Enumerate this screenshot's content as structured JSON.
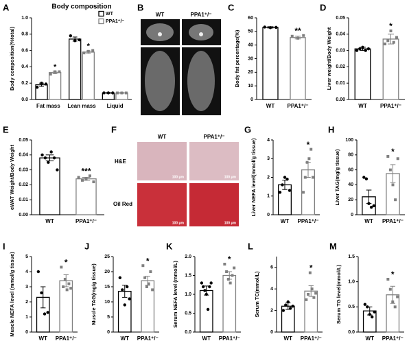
{
  "chart_data": [
    {
      "panel": "A",
      "type": "bar",
      "title": "Body composition",
      "ylabel": "Body composition(%total)",
      "categories": [
        "Fat mass",
        "Lean mass",
        "Liquid"
      ],
      "series": [
        {
          "name": "WT",
          "color": "#000000",
          "values": [
            0.18,
            0.74,
            0.08
          ],
          "errors": [
            0.02,
            0.025,
            0.005
          ],
          "points": [
            [
              0.15,
              0.2,
              0.19
            ],
            [
              0.78,
              0.72,
              0.73
            ],
            [
              0.08,
              0.08,
              0.08
            ]
          ],
          "significance": [
            null,
            null,
            null
          ]
        },
        {
          "name": "PPA1⁺/⁻",
          "color": "#808080",
          "values": [
            0.33,
            0.58,
            0.08
          ],
          "errors": [
            0.015,
            0.015,
            0.005
          ],
          "points": [
            [
              0.31,
              0.34,
              0.34
            ],
            [
              0.57,
              0.59,
              0.6
            ],
            [
              0.08,
              0.08,
              0.08
            ]
          ],
          "significance": [
            "*",
            "*",
            null
          ]
        }
      ],
      "legend": "upper right",
      "ylim": [
        0,
        1.0
      ],
      "yticks": [
        {
          "value": 0,
          "label": "0.0"
        },
        0.2,
        0.4,
        0.6,
        0.8,
        {
          "value": 1.0,
          "label": "1.0"
        }
      ]
    },
    {
      "panel": "C",
      "type": "bar",
      "ylabel": "Body fat percentage(%)",
      "categories": [
        "WT",
        "PPA1⁺/⁻"
      ],
      "colors": [
        "#000000",
        "#808080"
      ],
      "values": [
        53,
        45.5
      ],
      "errors": [
        0.5,
        1
      ],
      "points": [
        [
          53.2,
          52.8,
          53
        ],
        [
          46.5,
          45,
          47
        ]
      ],
      "significance": [
        null,
        "**"
      ],
      "ylim": [
        0,
        60
      ],
      "yticks": [
        0,
        10,
        20,
        30,
        40,
        50,
        60
      ]
    },
    {
      "panel": "D",
      "type": "bar",
      "ylabel": "Liver weight/Body Weight",
      "categories": [
        "WT",
        "PPA1⁺/⁻"
      ],
      "colors": [
        "#000000",
        "#808080"
      ],
      "values": [
        0.031,
        0.037
      ],
      "errors": [
        0.001,
        0.003
      ],
      "points": [
        [
          0.03,
          0.031,
          0.032,
          0.03,
          0.031
        ],
        [
          0.034,
          0.036,
          0.042,
          0.035,
          0.038
        ]
      ],
      "significance": [
        null,
        "*"
      ],
      "ylim": [
        0,
        0.05
      ],
      "yticks": [
        {
          "value": 0,
          "label": "0.00"
        },
        {
          "value": 0.01,
          "label": "0.01"
        },
        {
          "value": 0.02,
          "label": "0.02"
        },
        {
          "value": 0.03,
          "label": "0.03"
        },
        {
          "value": 0.04,
          "label": "0.04"
        },
        {
          "value": 0.05,
          "label": "0.05"
        }
      ]
    },
    {
      "panel": "E",
      "type": "bar",
      "ylabel": "eWAT Weight/Body Weight",
      "categories": [
        "WT",
        "PPA1⁺/⁻"
      ],
      "colors": [
        "#000000",
        "#808080"
      ],
      "values": [
        0.038,
        0.024
      ],
      "errors": [
        0.002,
        0.001
      ],
      "points": [
        [
          0.04,
          0.038,
          0.035,
          0.042,
          0.038,
          0.03
        ],
        [
          0.025,
          0.023,
          0.024,
          0.026,
          0.022
        ]
      ],
      "significance": [
        null,
        "***"
      ],
      "ylim": [
        0,
        0.05
      ],
      "yticks": [
        {
          "value": 0,
          "label": "0.00"
        },
        {
          "value": 0.01,
          "label": "0.01"
        },
        {
          "value": 0.02,
          "label": "0.02"
        },
        {
          "value": 0.03,
          "label": "0.03"
        },
        {
          "value": 0.04,
          "label": "0.04"
        },
        {
          "value": 0.05,
          "label": "0.05"
        }
      ]
    },
    {
      "panel": "G",
      "type": "bar",
      "ylabel": "Liver NEFA level(mmol/g tissue)",
      "categories": [
        "WT",
        "PPA1⁺/⁻"
      ],
      "colors": [
        "#000000",
        "#808080"
      ],
      "values": [
        1.6,
        2.4
      ],
      "errors": [
        0.25,
        0.4
      ],
      "points": [
        [
          1.2,
          1.6,
          2.0,
          1.9,
          1.3
        ],
        [
          1.2,
          2.0,
          2.8,
          3.0,
          3.5,
          2.0
        ]
      ],
      "significance": [
        null,
        "*"
      ],
      "ylim": [
        0,
        4
      ],
      "yticks": [
        0,
        1,
        2,
        3,
        4
      ]
    },
    {
      "panel": "H",
      "type": "bar",
      "ylabel": "Liver TAG(mg/g tissue)",
      "categories": [
        "WT",
        "PPA1⁺/⁻"
      ],
      "colors": [
        "#000000",
        "#808080"
      ],
      "values": [
        24,
        55
      ],
      "errors": [
        9,
        12
      ],
      "points": [
        [
          50,
          48,
          15,
          10,
          12
        ],
        [
          78,
          60,
          40,
          20,
          75
        ]
      ],
      "significance": [
        null,
        "*"
      ],
      "ylim": [
        0,
        100
      ],
      "yticks": [
        0,
        20,
        40,
        60,
        80,
        100
      ]
    },
    {
      "panel": "I",
      "type": "bar",
      "ylabel": "Muscle NEFA level (mmol/g tissue)",
      "categories": [
        "WT",
        "PPA1⁺/⁻"
      ],
      "colors": [
        "#000000",
        "#808080"
      ],
      "values": [
        2.3,
        3.4
      ],
      "errors": [
        0.7,
        0.4
      ],
      "points": [
        [
          4.0,
          2.6,
          1.2,
          1.3
        ],
        [
          4.3,
          3.0,
          3.5,
          2.8,
          3.2,
          2.9
        ]
      ],
      "significance": [
        null,
        "*"
      ],
      "ylim": [
        0,
        5
      ],
      "yticks": [
        0,
        1,
        2,
        3,
        4,
        5
      ]
    },
    {
      "panel": "J",
      "type": "bar",
      "ylabel": "Muscle TAG(mg/g tissue)",
      "categories": [
        "WT",
        "PPA1⁺/⁻"
      ],
      "colors": [
        "#000000",
        "#808080"
      ],
      "values": [
        13.5,
        17
      ],
      "errors": [
        2,
        1.5
      ],
      "points": [
        [
          18,
          14,
          9,
          15,
          11
        ],
        [
          22,
          18,
          15,
          16,
          20,
          14
        ]
      ],
      "significance": [
        null,
        "*"
      ],
      "ylim": [
        0,
        25
      ],
      "yticks": [
        0,
        5,
        10,
        15,
        20,
        25
      ]
    },
    {
      "panel": "K",
      "type": "bar",
      "ylabel": "Serum NEFA level (mmol/L)",
      "categories": [
        "WT",
        "PPA1⁺/⁻"
      ],
      "colors": [
        "#000000",
        "#808080"
      ],
      "values": [
        1.1,
        1.5
      ],
      "errors": [
        0.12,
        0.1
      ],
      "points": [
        [
          1.3,
          1.2,
          1.1,
          1.0,
          0.6,
          1.2,
          1.3
        ],
        [
          1.8,
          1.6,
          1.4,
          1.3,
          1.5,
          1.7
        ]
      ],
      "significance": [
        null,
        "*"
      ],
      "ylim": [
        0,
        2.0
      ],
      "yticks": [
        {
          "value": 0,
          "label": "0.0"
        },
        0.5,
        {
          "value": 1.0,
          "label": "1.0"
        },
        1.5,
        {
          "value": 2.0,
          "label": "2.0"
        }
      ]
    },
    {
      "panel": "L",
      "type": "bar",
      "ylabel": "Serum TC(mmol/L)",
      "categories": [
        "WT",
        "PPA1⁺/⁻"
      ],
      "colors": [
        "#000000",
        "#808080"
      ],
      "values": [
        2.4,
        3.8
      ],
      "errors": [
        0.3,
        0.5
      ],
      "points": [
        [
          2.0,
          2.5,
          2.8,
          2.2,
          2.4
        ],
        [
          3.0,
          3.5,
          5.5,
          4.0,
          3.2,
          3.6
        ]
      ],
      "significance": [
        null,
        "*"
      ],
      "ylim": [
        0,
        7
      ],
      "yticks": [
        0,
        2,
        4,
        6
      ]
    },
    {
      "panel": "M",
      "type": "bar",
      "ylabel": "Serum TG level(mmol/L)",
      "categories": [
        "WT",
        "PPA1⁺/⁻"
      ],
      "colors": [
        "#000000",
        "#808080"
      ],
      "values": [
        0.42,
        0.74
      ],
      "errors": [
        0.08,
        0.17
      ],
      "points": [
        [
          0.55,
          0.5,
          0.35,
          0.3,
          0.4
        ],
        [
          1.05,
          0.85,
          0.6,
          0.5,
          0.7
        ]
      ],
      "significance": [
        null,
        "*"
      ],
      "ylim": [
        0,
        1.5
      ],
      "yticks": [
        {
          "value": 0,
          "label": "0.0"
        },
        0.5,
        {
          "value": 1.0,
          "label": "1.0"
        },
        1.5
      ]
    }
  ],
  "panel_b": {
    "panel": "B",
    "labels": [
      "WT",
      "PPA1⁺/⁻"
    ]
  },
  "panel_f": {
    "panel": "F",
    "columns": [
      "WT",
      "PPA1⁺/⁻"
    ],
    "rows": [
      "H&E",
      "Oil Red"
    ],
    "scale_bars": [
      "100 μm",
      "100 μm",
      "100 μm",
      "100 μm"
    ]
  }
}
